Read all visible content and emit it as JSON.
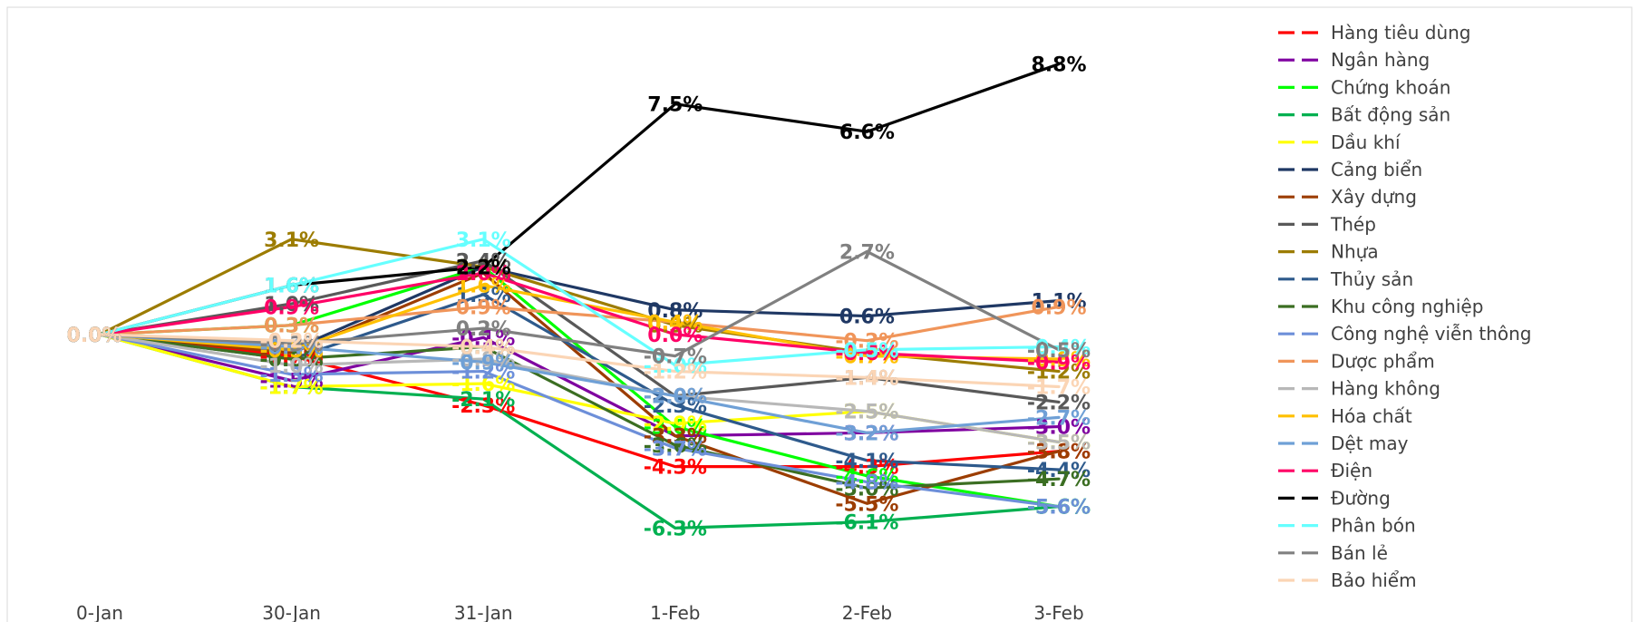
{
  "chart_data": {
    "type": "line",
    "title": "",
    "xlabel": "",
    "ylabel": "",
    "categories": [
      "0-Jan",
      "30-Jan",
      "31-Jan",
      "1-Feb",
      "2-Feb",
      "3-Feb"
    ],
    "ylim": [
      -8,
      10
    ],
    "grid": false,
    "legend_position": "right",
    "value_unit": "%",
    "series": [
      {
        "name": "Hàng tiêu dùng",
        "color": "#ff0000",
        "values": [
          0.0,
          -0.7,
          -2.3,
          -4.3,
          -4.3,
          -3.8
        ]
      },
      {
        "name": "Ngân hàng",
        "color": "#7f00a0",
        "values": [
          0.0,
          -1.5,
          -0.1,
          -3.3,
          -3.2,
          -3.0
        ]
      },
      {
        "name": "Chứng khoán",
        "color": "#00ff00",
        "values": [
          0.0,
          0.3,
          2.2,
          -3.0,
          -4.6,
          -5.6
        ]
      },
      {
        "name": "Bất động sản",
        "color": "#00b050",
        "values": [
          0.0,
          -1.7,
          -2.1,
          -6.3,
          -6.1,
          -5.6
        ]
      },
      {
        "name": "Dầu khí",
        "color": "#ffff00",
        "values": [
          0.0,
          -1.7,
          -1.6,
          -2.9,
          -2.5,
          -3.5
        ]
      },
      {
        "name": "Cảng biển",
        "color": "#1f3864",
        "values": [
          0.0,
          -0.5,
          2.2,
          0.8,
          0.6,
          1.1
        ]
      },
      {
        "name": "Xây dựng",
        "color": "#9c3d00",
        "values": [
          0.0,
          -0.6,
          2.0,
          -3.3,
          -5.5,
          -3.8
        ]
      },
      {
        "name": "Thép",
        "color": "#595959",
        "values": [
          0.0,
          1.0,
          2.4,
          -2.0,
          -1.4,
          -2.2
        ]
      },
      {
        "name": "Nhựa",
        "color": "#9c7c00",
        "values": [
          0.0,
          3.1,
          2.2,
          0.3,
          -0.6,
          -1.2
        ]
      },
      {
        "name": "Thủy sản",
        "color": "#2e5a8c",
        "values": [
          0.0,
          -0.8,
          1.3,
          -2.3,
          -4.1,
          -4.4
        ]
      },
      {
        "name": "Khu công nghiệp",
        "color": "#3b6e22",
        "values": [
          0.0,
          -0.8,
          -0.4,
          -3.6,
          -5.0,
          -4.7
        ]
      },
      {
        "name": "Công nghệ viễn thông",
        "color": "#6d8fd9",
        "values": [
          0.0,
          -1.3,
          -1.2,
          -3.7,
          -4.8,
          -5.6
        ]
      },
      {
        "name": "Dược phẩm",
        "color": "#f0955a",
        "values": [
          0.0,
          0.3,
          0.9,
          0.4,
          -0.2,
          0.9
        ]
      },
      {
        "name": "Hàng không",
        "color": "#b8b8b8",
        "values": [
          0.0,
          -1.0,
          -0.8,
          -2.0,
          -2.5,
          -3.5
        ]
      },
      {
        "name": "Hóa chất",
        "color": "#ffc000",
        "values": [
          0.0,
          -0.5,
          1.6,
          0.4,
          -0.7,
          -0.8
        ]
      },
      {
        "name": "Dệt may",
        "color": "#6fa0d6",
        "values": [
          0.0,
          -0.4,
          -0.9,
          -2.0,
          -3.2,
          -2.7
        ]
      },
      {
        "name": "Điện",
        "color": "#ff0066",
        "values": [
          0.0,
          0.9,
          2.0,
          0.0,
          -0.6,
          -0.9
        ]
      },
      {
        "name": "Đường",
        "color": "#000000",
        "values": [
          0.0,
          1.6,
          2.2,
          7.5,
          6.6,
          8.8
        ]
      },
      {
        "name": "Phân bón",
        "color": "#66ffff",
        "values": [
          0.0,
          1.6,
          3.1,
          -1.0,
          -0.5,
          -0.4
        ]
      },
      {
        "name": "Bán lẻ",
        "color": "#808080",
        "values": [
          0.0,
          -0.3,
          0.2,
          -0.7,
          2.7,
          -0.5
        ]
      },
      {
        "name": "Bảo hiểm",
        "color": "#fbd5b5",
        "values": [
          0.0,
          -0.2,
          -0.4,
          -1.2,
          -1.4,
          -1.7
        ]
      }
    ]
  }
}
